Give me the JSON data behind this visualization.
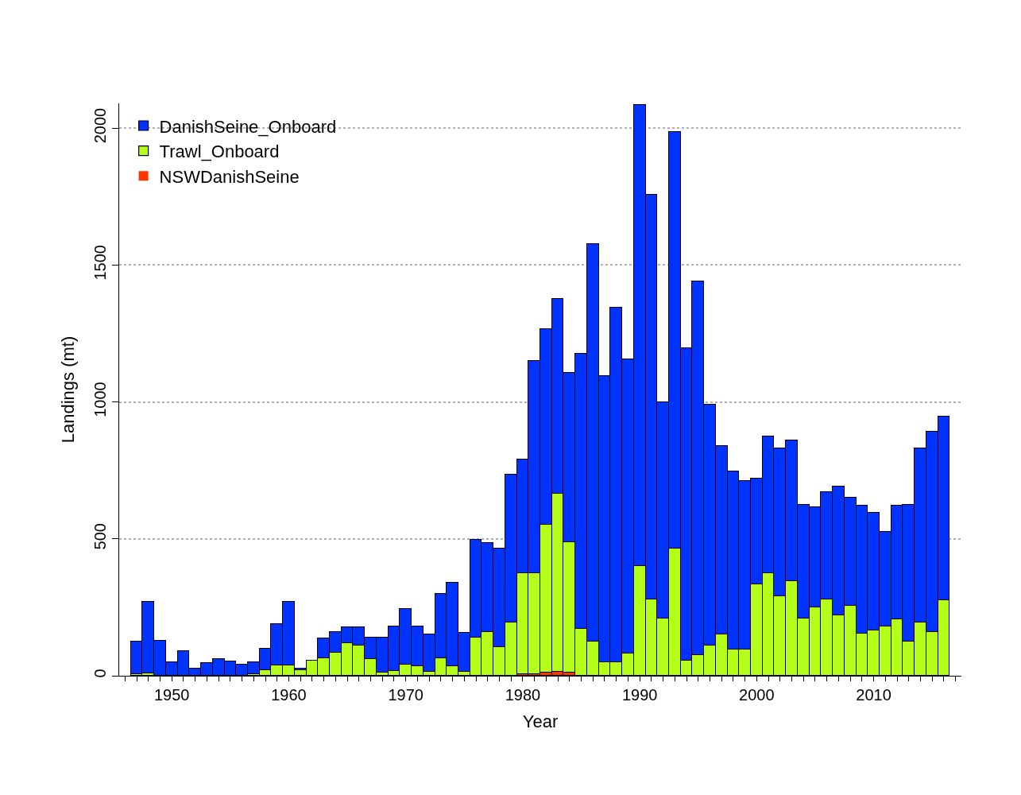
{
  "chart_data": {
    "type": "bar",
    "stacked": true,
    "xlabel": "Year",
    "ylabel": "Landings (mt)",
    "x": [
      1947,
      1948,
      1949,
      1950,
      1951,
      1952,
      1953,
      1954,
      1955,
      1956,
      1957,
      1958,
      1959,
      1960,
      1961,
      1962,
      1963,
      1964,
      1965,
      1966,
      1967,
      1968,
      1969,
      1970,
      1971,
      1972,
      1973,
      1974,
      1975,
      1976,
      1977,
      1978,
      1979,
      1980,
      1981,
      1982,
      1983,
      1984,
      1985,
      1986,
      1987,
      1988,
      1989,
      1990,
      1991,
      1992,
      1993,
      1994,
      1995,
      1996,
      1997,
      1998,
      1999,
      2000,
      2001,
      2002,
      2003,
      2004,
      2005,
      2006,
      2007,
      2008,
      2009,
      2010,
      2011,
      2012,
      2013,
      2014,
      2015,
      2016
    ],
    "series": [
      {
        "name": "NSWDanishSeine",
        "color": "#ff3300",
        "values": [
          0,
          0,
          0,
          0,
          0,
          0,
          0,
          0,
          0,
          0,
          0,
          0,
          0,
          0,
          0,
          0,
          0,
          0,
          0,
          0,
          0,
          0,
          0,
          0,
          0,
          0,
          0,
          0,
          0,
          0,
          0,
          0,
          0,
          5,
          5,
          12,
          15,
          12,
          0,
          0,
          0,
          0,
          0,
          0,
          0,
          0,
          0,
          0,
          0,
          0,
          0,
          0,
          0,
          0,
          0,
          0,
          0,
          0,
          0,
          0,
          0,
          0,
          0,
          0,
          0,
          0,
          0,
          0,
          0,
          0
        ]
      },
      {
        "name": "Trawl_Onboard",
        "color": "#b3ff1a",
        "values": [
          5,
          8,
          0,
          0,
          0,
          0,
          0,
          0,
          0,
          0,
          5,
          20,
          38,
          38,
          20,
          55,
          65,
          85,
          120,
          110,
          60,
          12,
          18,
          40,
          35,
          15,
          65,
          35,
          15,
          140,
          160,
          105,
          195,
          370,
          370,
          540,
          650,
          475,
          170,
          125,
          50,
          50,
          80,
          400,
          280,
          210,
          465,
          55,
          75,
          110,
          150,
          95,
          95,
          335,
          375,
          290,
          345,
          210,
          250,
          280,
          220,
          255,
          155,
          165,
          180,
          205,
          125,
          195,
          160,
          275
        ]
      },
      {
        "name": "DanishSeine_Onboard",
        "color": "#0033ff",
        "values": [
          121,
          263,
          129,
          50,
          91,
          25,
          47,
          60,
          52,
          42,
          43,
          80,
          152,
          232,
          5,
          0,
          70,
          75,
          58,
          68,
          80,
          128,
          162,
          205,
          145,
          135,
          235,
          305,
          143,
          355,
          325,
          360,
          540,
          415,
          775,
          713,
          710,
          618,
          1005,
          1450,
          1045,
          1295,
          1075,
          1685,
          1475,
          790,
          1520,
          1140,
          1365,
          880,
          690,
          650,
          615,
          385,
          500,
          540,
          515,
          415,
          365,
          390,
          470,
          395,
          465,
          430,
          345,
          415,
          500,
          635,
          730,
          670
        ]
      }
    ],
    "xlim": [
      1945.5,
      2017.5
    ],
    "xticks": [
      {
        "value": 1946,
        "label": null
      },
      {
        "value": 1947,
        "label": null
      },
      {
        "value": 1948,
        "label": null
      },
      {
        "value": 1949,
        "label": null
      },
      1950,
      {
        "value": 1951,
        "label": null
      },
      {
        "value": 1952,
        "label": null
      },
      {
        "value": 1953,
        "label": null
      },
      {
        "value": 1954,
        "label": null
      },
      {
        "value": 1955,
        "label": null
      },
      {
        "value": 1956,
        "label": null
      },
      {
        "value": 1957,
        "label": null
      },
      {
        "value": 1958,
        "label": null
      },
      {
        "value": 1959,
        "label": null
      },
      1960,
      {
        "value": 1961,
        "label": null
      },
      {
        "value": 1962,
        "label": null
      },
      {
        "value": 1963,
        "label": null
      },
      {
        "value": 1964,
        "label": null
      },
      {
        "value": 1965,
        "label": null
      },
      {
        "value": 1966,
        "label": null
      },
      {
        "value": 1967,
        "label": null
      },
      {
        "value": 1968,
        "label": null
      },
      {
        "value": 1969,
        "label": null
      },
      1970,
      {
        "value": 1971,
        "label": null
      },
      {
        "value": 1972,
        "label": null
      },
      {
        "value": 1973,
        "label": null
      },
      {
        "value": 1974,
        "label": null
      },
      {
        "value": 1975,
        "label": null
      },
      {
        "value": 1976,
        "label": null
      },
      {
        "value": 1977,
        "label": null
      },
      {
        "value": 1978,
        "label": null
      },
      {
        "value": 1979,
        "label": null
      },
      1980,
      {
        "value": 1981,
        "label": null
      },
      {
        "value": 1982,
        "label": null
      },
      {
        "value": 1983,
        "label": null
      },
      {
        "value": 1984,
        "label": null
      },
      {
        "value": 1985,
        "label": null
      },
      {
        "value": 1986,
        "label": null
      },
      {
        "value": 1987,
        "label": null
      },
      {
        "value": 1988,
        "label": null
      },
      {
        "value": 1989,
        "label": null
      },
      1990,
      {
        "value": 1991,
        "label": null
      },
      {
        "value": 1992,
        "label": null
      },
      {
        "value": 1993,
        "label": null
      },
      {
        "value": 1994,
        "label": null
      },
      {
        "value": 1995,
        "label": null
      },
      {
        "value": 1996,
        "label": null
      },
      {
        "value": 1997,
        "label": null
      },
      {
        "value": 1998,
        "label": null
      },
      {
        "value": 1999,
        "label": null
      },
      2000,
      {
        "value": 2001,
        "label": null
      },
      {
        "value": 2002,
        "label": null
      },
      {
        "value": 2003,
        "label": null
      },
      {
        "value": 2004,
        "label": null
      },
      {
        "value": 2005,
        "label": null
      },
      {
        "value": 2006,
        "label": null
      },
      {
        "value": 2007,
        "label": null
      },
      {
        "value": 2008,
        "label": null
      },
      {
        "value": 2009,
        "label": null
      },
      2010,
      {
        "value": 2011,
        "label": null
      },
      {
        "value": 2012,
        "label": null
      },
      {
        "value": 2013,
        "label": null
      },
      {
        "value": 2014,
        "label": null
      },
      {
        "value": 2015,
        "label": null
      },
      {
        "value": 2016,
        "label": null
      },
      {
        "value": 2017,
        "label": null
      }
    ],
    "ylim": [
      0,
      2090
    ],
    "yticks": [
      0,
      500,
      1000,
      1500,
      2000
    ],
    "grid": "y",
    "legend": "top left"
  }
}
